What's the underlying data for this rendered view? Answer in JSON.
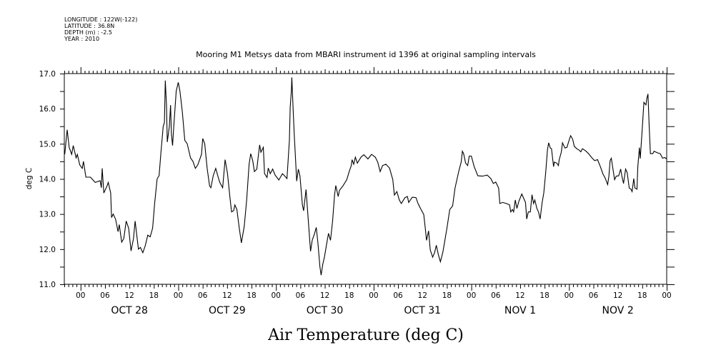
{
  "header": {
    "info_lines": [
      "LONGITUDE : 122W(-122)",
      "LATITUDE : 36.8N",
      "DEPTH (m) : -2.5",
      "YEAR : 2010"
    ]
  },
  "chart_data": {
    "type": "line",
    "title": "Mooring M1 Metsys data from MBARI instrument id 1396 at original sampling intervals",
    "xlabel": "Air Temperature (deg C)",
    "ylabel": "deg C",
    "x_units": "hours since OCT 27 20:00",
    "xlim": [
      0,
      148
    ],
    "ylim": [
      11.0,
      17.0
    ],
    "y_ticks": [
      11.0,
      12.0,
      13.0,
      14.0,
      15.0,
      16.0,
      17.0
    ],
    "y_tick_labels": [
      "11.0",
      "12.0",
      "13.0",
      "14.0",
      "15.0",
      "16.0",
      "17.0"
    ],
    "x_ticks": [
      4,
      10,
      16,
      22,
      28,
      34,
      40,
      46,
      52,
      58,
      64,
      70,
      76,
      82,
      88,
      94,
      100,
      106,
      112,
      118,
      124,
      130,
      136,
      142,
      148
    ],
    "x_tick_labels": [
      "00",
      "06",
      "12",
      "18",
      "00",
      "06",
      "12",
      "18",
      "00",
      "06",
      "12",
      "18",
      "00",
      "06",
      "12",
      "18",
      "00",
      "06",
      "12",
      "18",
      "00",
      "06",
      "12",
      "18",
      "00"
    ],
    "date_labels": [
      {
        "x": 16,
        "label": "OCT 28"
      },
      {
        "x": 40,
        "label": "OCT 29"
      },
      {
        "x": 64,
        "label": "OCT 30"
      },
      {
        "x": 88,
        "label": "OCT 31"
      },
      {
        "x": 112,
        "label": "NOV  1"
      },
      {
        "x": 136,
        "label": "NOV  2"
      }
    ],
    "grid": false,
    "color": "#000000",
    "series": [
      {
        "name": "Air Temperature",
        "points": [
          [
            0.1,
            14.7
          ],
          [
            0.7,
            15.4
          ],
          [
            1.2,
            14.9
          ],
          [
            1.8,
            14.7
          ],
          [
            2.2,
            14.95
          ],
          [
            2.9,
            14.6
          ],
          [
            3.2,
            14.7
          ],
          [
            3.8,
            14.4
          ],
          [
            4.4,
            14.3
          ],
          [
            4.7,
            14.5
          ],
          [
            5.3,
            14.05
          ],
          [
            6.4,
            14.05
          ],
          [
            7.6,
            13.9
          ],
          [
            8.8,
            13.95
          ],
          [
            9.1,
            13.75
          ],
          [
            9.3,
            14.3
          ],
          [
            9.7,
            13.6
          ],
          [
            10.5,
            13.8
          ],
          [
            10.8,
            13.9
          ],
          [
            11.4,
            13.6
          ],
          [
            11.6,
            12.9
          ],
          [
            12.0,
            13.0
          ],
          [
            12.6,
            12.85
          ],
          [
            13.2,
            12.5
          ],
          [
            13.5,
            12.7
          ],
          [
            14.1,
            12.2
          ],
          [
            14.6,
            12.3
          ],
          [
            15.2,
            12.8
          ],
          [
            15.8,
            12.6
          ],
          [
            16.4,
            11.95
          ],
          [
            17.0,
            12.3
          ],
          [
            17.4,
            12.8
          ],
          [
            18.2,
            12.0
          ],
          [
            18.7,
            12.05
          ],
          [
            19.3,
            11.9
          ],
          [
            19.9,
            12.1
          ],
          [
            20.5,
            12.4
          ],
          [
            21.1,
            12.35
          ],
          [
            21.7,
            12.6
          ],
          [
            22.2,
            13.3
          ],
          [
            22.8,
            14.0
          ],
          [
            23.3,
            14.1
          ],
          [
            23.7,
            14.7
          ],
          [
            24.3,
            15.5
          ],
          [
            24.6,
            15.6
          ],
          [
            24.8,
            16.8
          ],
          [
            25.1,
            16.1
          ],
          [
            25.3,
            15.05
          ],
          [
            25.8,
            15.5
          ],
          [
            26.1,
            16.1
          ],
          [
            26.3,
            15.3
          ],
          [
            26.6,
            14.95
          ],
          [
            26.9,
            15.5
          ],
          [
            27.5,
            16.5
          ],
          [
            28.0,
            16.75
          ],
          [
            28.4,
            16.5
          ],
          [
            29.0,
            15.9
          ],
          [
            29.6,
            15.1
          ],
          [
            30.2,
            15.0
          ],
          [
            31.0,
            14.6
          ],
          [
            31.6,
            14.5
          ],
          [
            32.2,
            14.3
          ],
          [
            32.8,
            14.4
          ],
          [
            33.7,
            14.7
          ],
          [
            34.0,
            15.15
          ],
          [
            34.5,
            15.0
          ],
          [
            35.1,
            14.3
          ],
          [
            35.7,
            13.8
          ],
          [
            36.0,
            13.75
          ],
          [
            36.6,
            14.1
          ],
          [
            37.2,
            14.3
          ],
          [
            37.8,
            14.05
          ],
          [
            38.2,
            13.9
          ],
          [
            38.9,
            13.75
          ],
          [
            39.5,
            14.55
          ],
          [
            40.1,
            14.15
          ],
          [
            40.7,
            13.47
          ],
          [
            41.1,
            13.06
          ],
          [
            41.6,
            13.1
          ],
          [
            41.9,
            13.26
          ],
          [
            42.4,
            13.13
          ],
          [
            43.0,
            12.59
          ],
          [
            43.5,
            12.18
          ],
          [
            44.2,
            12.65
          ],
          [
            44.8,
            13.4
          ],
          [
            45.4,
            14.42
          ],
          [
            45.8,
            14.72
          ],
          [
            46.3,
            14.52
          ],
          [
            46.7,
            14.21
          ],
          [
            47.3,
            14.28
          ],
          [
            47.7,
            14.69
          ],
          [
            48.0,
            14.97
          ],
          [
            48.3,
            14.76
          ],
          [
            48.9,
            14.9
          ],
          [
            49.2,
            14.15
          ],
          [
            49.8,
            14.04
          ],
          [
            50.1,
            14.31
          ],
          [
            50.6,
            14.15
          ],
          [
            51.2,
            14.28
          ],
          [
            51.8,
            14.11
          ],
          [
            52.7,
            13.97
          ],
          [
            53.6,
            14.15
          ],
          [
            54.2,
            14.08
          ],
          [
            54.7,
            14.01
          ],
          [
            55.3,
            15.1
          ],
          [
            55.5,
            16.04
          ],
          [
            55.8,
            16.52
          ],
          [
            55.9,
            16.89
          ],
          [
            56.2,
            16.04
          ],
          [
            56.5,
            15.26
          ],
          [
            57.1,
            13.94
          ],
          [
            57.5,
            14.28
          ],
          [
            57.9,
            14.08
          ],
          [
            58.5,
            13.26
          ],
          [
            58.8,
            13.09
          ],
          [
            59.4,
            13.7
          ],
          [
            60.0,
            12.72
          ],
          [
            60.5,
            11.94
          ],
          [
            60.9,
            12.25
          ],
          [
            61.5,
            12.45
          ],
          [
            61.9,
            12.62
          ],
          [
            62.3,
            12.18
          ],
          [
            62.8,
            11.5
          ],
          [
            63.1,
            11.26
          ],
          [
            63.5,
            11.57
          ],
          [
            63.9,
            11.77
          ],
          [
            64.4,
            12.11
          ],
          [
            64.9,
            12.45
          ],
          [
            65.4,
            12.25
          ],
          [
            65.9,
            12.79
          ],
          [
            66.4,
            13.54
          ],
          [
            66.7,
            13.81
          ],
          [
            67.3,
            13.5
          ],
          [
            67.6,
            13.67
          ],
          [
            68.5,
            13.81
          ],
          [
            69.4,
            13.98
          ],
          [
            70.0,
            14.21
          ],
          [
            70.5,
            14.38
          ],
          [
            70.7,
            14.55
          ],
          [
            71.1,
            14.42
          ],
          [
            71.5,
            14.62
          ],
          [
            72.0,
            14.45
          ],
          [
            72.9,
            14.62
          ],
          [
            73.6,
            14.69
          ],
          [
            74.6,
            14.57
          ],
          [
            75.5,
            14.7
          ],
          [
            76.4,
            14.62
          ],
          [
            77.0,
            14.48
          ],
          [
            77.6,
            14.21
          ],
          [
            78.2,
            14.38
          ],
          [
            79.0,
            14.42
          ],
          [
            79.9,
            14.31
          ],
          [
            80.7,
            13.98
          ],
          [
            81.1,
            13.54
          ],
          [
            81.7,
            13.64
          ],
          [
            82.3,
            13.4
          ],
          [
            82.8,
            13.3
          ],
          [
            83.7,
            13.47
          ],
          [
            84.3,
            13.5
          ],
          [
            84.6,
            13.33
          ],
          [
            85.5,
            13.48
          ],
          [
            86.4,
            13.47
          ],
          [
            86.9,
            13.3
          ],
          [
            87.5,
            13.16
          ],
          [
            88.3,
            12.99
          ],
          [
            88.7,
            12.59
          ],
          [
            89.0,
            12.25
          ],
          [
            89.5,
            12.52
          ],
          [
            89.9,
            11.98
          ],
          [
            90.5,
            11.77
          ],
          [
            91.0,
            11.91
          ],
          [
            91.4,
            12.11
          ],
          [
            91.9,
            11.84
          ],
          [
            92.4,
            11.64
          ],
          [
            93.0,
            11.91
          ],
          [
            93.4,
            12.18
          ],
          [
            94.0,
            12.59
          ],
          [
            94.7,
            13.13
          ],
          [
            95.4,
            13.23
          ],
          [
            96.0,
            13.74
          ],
          [
            96.9,
            14.21
          ],
          [
            97.5,
            14.48
          ],
          [
            97.8,
            14.79
          ],
          [
            98.1,
            14.72
          ],
          [
            98.6,
            14.45
          ],
          [
            99.1,
            14.38
          ],
          [
            99.5,
            14.65
          ],
          [
            100.0,
            14.65
          ],
          [
            100.7,
            14.35
          ],
          [
            101.6,
            14.09
          ],
          [
            102.7,
            14.08
          ],
          [
            103.9,
            14.11
          ],
          [
            104.8,
            14.01
          ],
          [
            105.4,
            13.87
          ],
          [
            106.0,
            13.91
          ],
          [
            106.7,
            13.74
          ],
          [
            107.0,
            13.3
          ],
          [
            107.7,
            13.33
          ],
          [
            108.6,
            13.3
          ],
          [
            109.4,
            13.26
          ],
          [
            109.7,
            13.06
          ],
          [
            110.1,
            13.13
          ],
          [
            110.4,
            13.06
          ],
          [
            110.8,
            13.4
          ],
          [
            111.2,
            13.16
          ],
          [
            111.7,
            13.37
          ],
          [
            112.4,
            13.57
          ],
          [
            113.3,
            13.33
          ],
          [
            113.6,
            12.86
          ],
          [
            114.0,
            13.06
          ],
          [
            114.5,
            13.06
          ],
          [
            114.9,
            13.55
          ],
          [
            115.3,
            13.3
          ],
          [
            115.6,
            13.4
          ],
          [
            116.1,
            13.16
          ],
          [
            116.5,
            13.06
          ],
          [
            116.9,
            12.86
          ],
          [
            117.4,
            13.33
          ],
          [
            117.8,
            13.6
          ],
          [
            118.3,
            14.21
          ],
          [
            118.7,
            14.82
          ],
          [
            119.0,
            15.03
          ],
          [
            119.4,
            14.88
          ],
          [
            119.7,
            14.86
          ],
          [
            120.2,
            14.35
          ],
          [
            120.4,
            14.48
          ],
          [
            121.0,
            14.45
          ],
          [
            121.4,
            14.38
          ],
          [
            121.6,
            14.55
          ],
          [
            122.1,
            14.76
          ],
          [
            122.4,
            15.03
          ],
          [
            123.0,
            14.88
          ],
          [
            123.5,
            14.9
          ],
          [
            124.1,
            15.13
          ],
          [
            124.4,
            15.23
          ],
          [
            124.9,
            15.13
          ],
          [
            125.3,
            14.93
          ],
          [
            125.9,
            14.86
          ],
          [
            126.5,
            14.82
          ],
          [
            126.9,
            14.77
          ],
          [
            127.3,
            14.86
          ],
          [
            128.2,
            14.79
          ],
          [
            128.8,
            14.72
          ],
          [
            129.7,
            14.59
          ],
          [
            130.3,
            14.52
          ],
          [
            131.0,
            14.55
          ],
          [
            131.7,
            14.35
          ],
          [
            132.3,
            14.15
          ],
          [
            132.9,
            14.02
          ],
          [
            133.5,
            13.84
          ],
          [
            133.8,
            14.08
          ],
          [
            134.1,
            14.52
          ],
          [
            134.4,
            14.59
          ],
          [
            134.8,
            14.28
          ],
          [
            135.2,
            13.98
          ],
          [
            135.6,
            14.08
          ],
          [
            136.2,
            14.09
          ],
          [
            136.7,
            14.28
          ],
          [
            137.0,
            14.08
          ],
          [
            137.4,
            13.87
          ],
          [
            137.9,
            14.28
          ],
          [
            138.3,
            14.18
          ],
          [
            138.8,
            13.74
          ],
          [
            139.2,
            13.71
          ],
          [
            139.5,
            13.64
          ],
          [
            139.9,
            14.01
          ],
          [
            140.2,
            13.74
          ],
          [
            140.7,
            13.71
          ],
          [
            140.9,
            14.35
          ],
          [
            141.3,
            14.89
          ],
          [
            141.5,
            14.58
          ],
          [
            142.0,
            15.43
          ],
          [
            142.4,
            16.18
          ],
          [
            142.9,
            16.11
          ],
          [
            143.1,
            16.28
          ],
          [
            143.4,
            16.42
          ],
          [
            143.7,
            15.5
          ],
          [
            144.0,
            14.72
          ],
          [
            144.6,
            14.72
          ],
          [
            144.9,
            14.79
          ],
          [
            145.8,
            14.74
          ],
          [
            146.4,
            14.72
          ],
          [
            147.0,
            14.59
          ],
          [
            147.5,
            14.61
          ],
          [
            148.0,
            14.57
          ]
        ]
      }
    ]
  }
}
